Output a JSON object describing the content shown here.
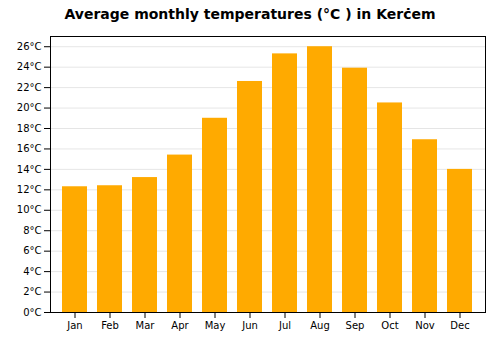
{
  "chart_data": {
    "type": "bar",
    "title": "Average monthly temperatures (°C ) in Kerċem",
    "categories": [
      "Jan",
      "Feb",
      "Mar",
      "Apr",
      "May",
      "Jun",
      "Jul",
      "Aug",
      "Sep",
      "Oct",
      "Nov",
      "Dec"
    ],
    "values": [
      12.3,
      12.4,
      13.2,
      15.4,
      19.0,
      22.6,
      25.3,
      26.0,
      23.9,
      20.5,
      16.9,
      14.0
    ],
    "color": "#FFAA00",
    "ylim": [
      0,
      27
    ],
    "yticks": [
      {
        "value": 0,
        "label": "0°C"
      },
      {
        "value": 2,
        "label": "2°C"
      },
      {
        "value": 4,
        "label": "4°C"
      },
      {
        "value": 6,
        "label": "6°C"
      },
      {
        "value": 8,
        "label": "8°C"
      },
      {
        "value": 10,
        "label": "10°C"
      },
      {
        "value": 12,
        "label": "12°C"
      },
      {
        "value": 14,
        "label": "14°C"
      },
      {
        "value": 16,
        "label": "16°C"
      },
      {
        "value": 18,
        "label": "18°C"
      },
      {
        "value": 20,
        "label": "20°C"
      },
      {
        "value": 22,
        "label": "22°C"
      },
      {
        "value": 24,
        "label": "24°C"
      },
      {
        "value": 26,
        "label": "26°C"
      }
    ],
    "grid": true
  }
}
